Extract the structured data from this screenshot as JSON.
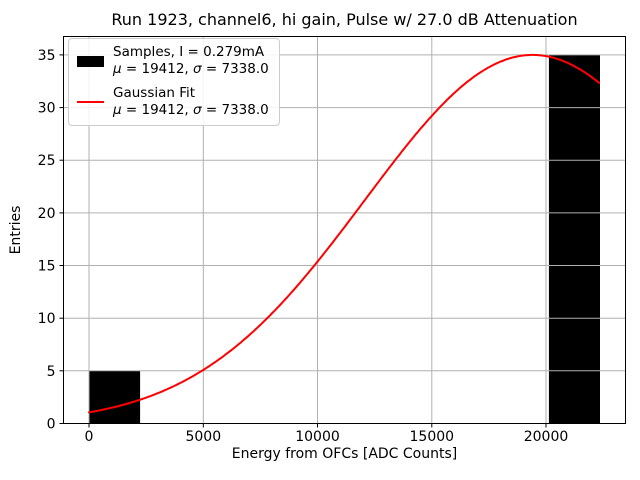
{
  "chart_data": {
    "type": "bar",
    "title": "Run 1923, channel6, hi gain, Pulse w/ 27.0 dB Attenuation",
    "xlabel": "Energy from OFCs [ADC Counts]",
    "ylabel": "Entries",
    "xlim": [
      -1118,
      23478
    ],
    "ylim": [
      0,
      36.75
    ],
    "xticks": [
      0,
      5000,
      10000,
      15000,
      20000
    ],
    "yticks": [
      0,
      5,
      10,
      15,
      20,
      25,
      30,
      35
    ],
    "grid": true,
    "grid_color": "#b0b0b0",
    "colors": {
      "bars": "#000000",
      "fit_line": "#ff0000",
      "spine": "#000000"
    },
    "bars": [
      {
        "bin_start": 0,
        "bin_end": 2236,
        "entries": 5
      },
      {
        "bin_start": 20124,
        "bin_end": 22360,
        "entries": 35
      }
    ],
    "gaussian_fit": {
      "mu": 19412,
      "sigma": 7338.0,
      "amplitude": 35,
      "x_min": 0,
      "x_max": 22360
    },
    "legend": {
      "position": "upper-left",
      "entries": [
        {
          "handle": "black-filled-patch",
          "label": "Samples, I = 0.279mA",
          "mu_symbol": "μ",
          "mu_text": " = 19412, ",
          "sigma_symbol": "σ",
          "sigma_text": " = 7338.0"
        },
        {
          "handle": "red-line",
          "label": "Gaussian Fit",
          "mu_symbol": "μ",
          "mu_text": " = 19412, ",
          "sigma_symbol": "σ",
          "sigma_text": " = 7338.0"
        }
      ]
    }
  }
}
